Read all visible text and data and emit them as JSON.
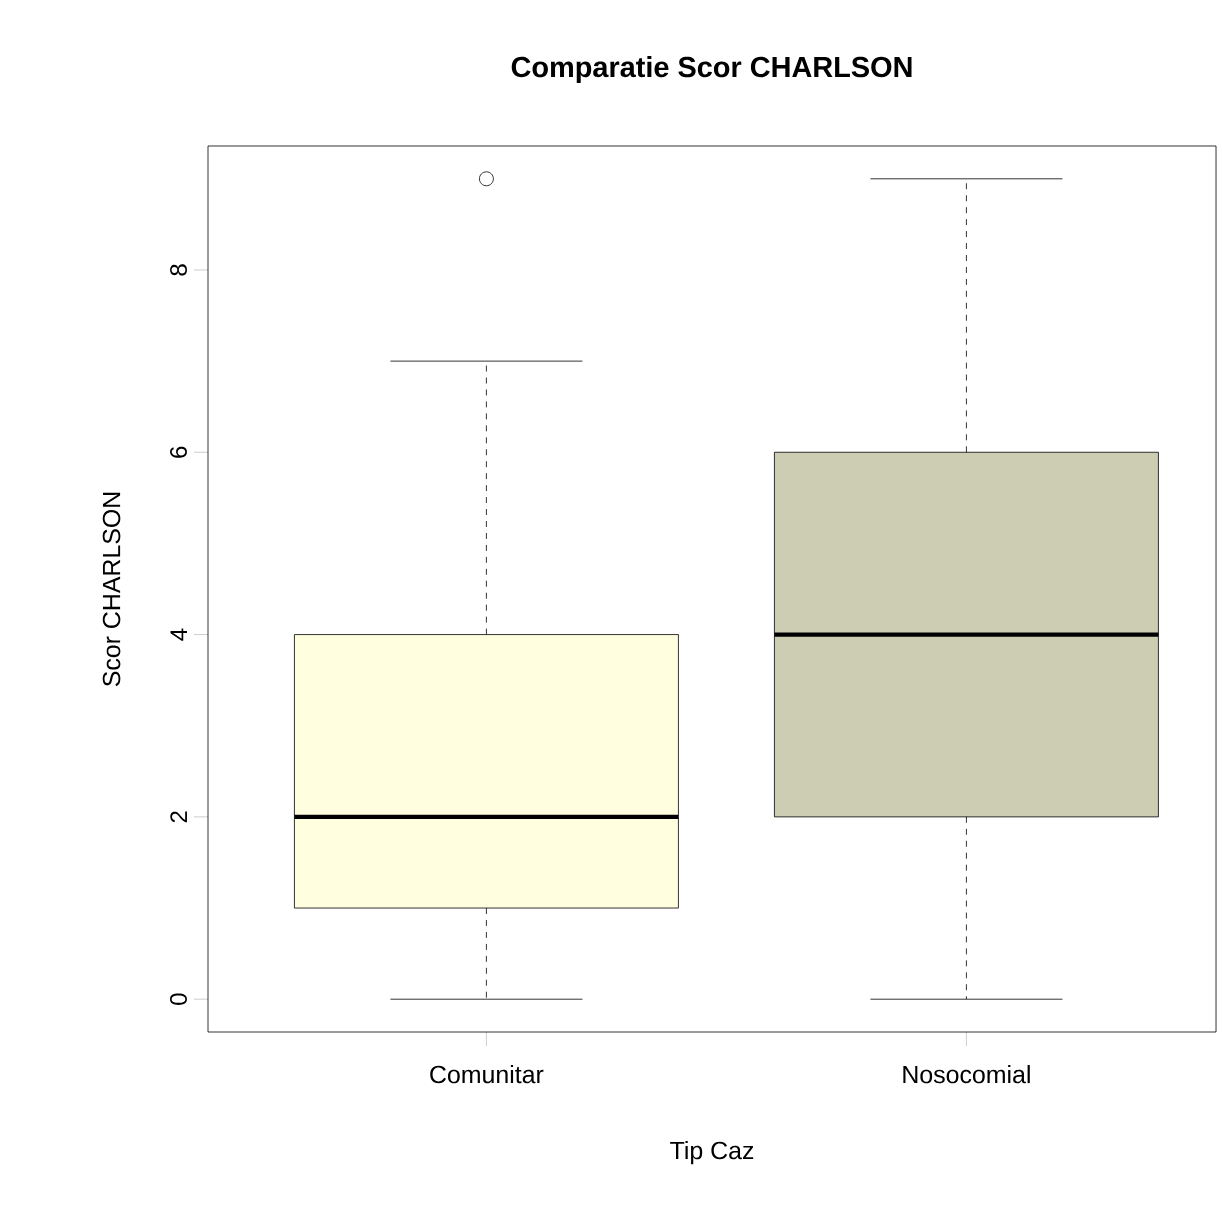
{
  "chart_data": {
    "type": "box",
    "title": "Comparatie Scor CHARLSON",
    "xlabel": "Tip Caz",
    "ylabel": "Scor CHARLSON",
    "categories": [
      "Comunitar",
      "Nosocomial"
    ],
    "colors": [
      "#ffffe0",
      "#cdcdb4"
    ],
    "boxes": [
      {
        "low": 0,
        "q1": 1,
        "median": 2,
        "q3": 4,
        "high": 7,
        "outliers": [
          9
        ]
      },
      {
        "low": 0,
        "q1": 2,
        "median": 4,
        "q3": 6,
        "high": 9
      }
    ],
    "ylim": [
      -0.36,
      9.36
    ],
    "yticks": [
      0,
      2,
      4,
      6,
      8
    ]
  }
}
